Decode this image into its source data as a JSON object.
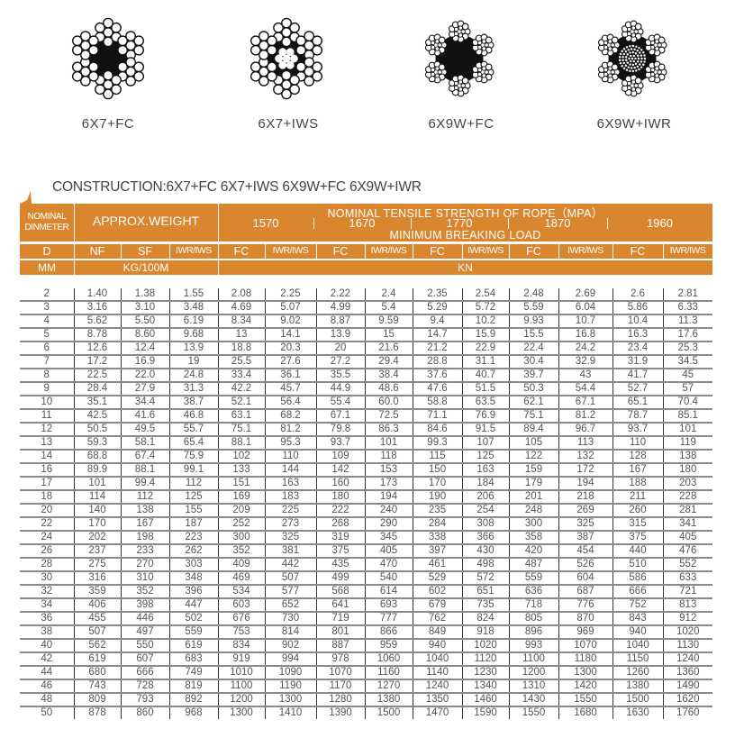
{
  "ropes": [
    {
      "label": "6X7+FC",
      "type": "7fc"
    },
    {
      "label": "6X7+IWS",
      "type": "7iws"
    },
    {
      "label": "6X9W+FC",
      "type": "9fc"
    },
    {
      "label": "6X9W+IWR",
      "type": "9iwr"
    }
  ],
  "construction": "CONSTRUCTION:6X7+FC 6X7+IWS 6X9W+FC 6X9W+IWR",
  "header": {
    "nominal_diameter": [
      "NOMINAL",
      "DINMETER"
    ],
    "approx_weight": "APPROX.WEIGHT",
    "tensile_title": "NOMINAL TENSILE STRENGTH OF ROPE（MPA）",
    "grades": [
      "1570",
      "1670",
      "1770",
      "1870",
      "1960"
    ],
    "min_breaking_load": "MINIMUM BREAKING LOAD",
    "sub_columns": [
      "D",
      "NF",
      "SF",
      "IWR/IWS",
      "FC",
      "IWR/IWS",
      "FC",
      "IWR/IWS",
      "FC",
      "IWR/IWS",
      "FC",
      "IWR/IWS",
      "FC",
      "IWR/IWS"
    ],
    "unit_mm": "MM",
    "unit_weight": "KG/100M",
    "unit_load": "KN"
  },
  "colors": {
    "header_bg": "#d9862f",
    "header_text": "#ffffff"
  },
  "rows": [
    [
      "2",
      "1.40",
      "1.38",
      "1.55",
      "2.08",
      "2.25",
      "2.22",
      "2.4",
      "2.35",
      "2.54",
      "2.48",
      "2.69",
      "2.6",
      "2.81"
    ],
    [
      "3",
      "3.16",
      "3.10",
      "3.48",
      "4.69",
      "5.07",
      "4.99",
      "5.4",
      "5.29",
      "5.72",
      "5.59",
      "6.04",
      "5.86",
      "6.33"
    ],
    [
      "4",
      "5.62",
      "5.50",
      "6.19",
      "8.34",
      "9.02",
      "8.87",
      "9.59",
      "9.4",
      "10.2",
      "9.93",
      "10.7",
      "10.4",
      "11.3"
    ],
    [
      "5",
      "8.78",
      "8.60",
      "9.68",
      "13",
      "14.1",
      "13.9",
      "15",
      "14.7",
      "15.9",
      "15.5",
      "16.8",
      "16.3",
      "17.6"
    ],
    [
      "6",
      "12.6",
      "12.4",
      "13.9",
      "18.8",
      "20.3",
      "20",
      "21.6",
      "21.2",
      "22.9",
      "22.4",
      "24.2",
      "23.4",
      "25.3"
    ],
    [
      "7",
      "17.2",
      "16.9",
      "19",
      "25.5",
      "27.6",
      "27.2",
      "29.4",
      "28.8",
      "31.1",
      "30.4",
      "32.9",
      "31.9",
      "34.5"
    ],
    [
      "8",
      "22.5",
      "22.0",
      "24.8",
      "33.4",
      "36.1",
      "35.5",
      "38.4",
      "37.6",
      "40.7",
      "39.7",
      "43",
      "41.7",
      "45"
    ],
    [
      "9",
      "28.4",
      "27.9",
      "31.3",
      "42.2",
      "45.7",
      "44.9",
      "48.6",
      "47.6",
      "51.5",
      "50.3",
      "54.4",
      "52.7",
      "57"
    ],
    [
      "10",
      "35.1",
      "34.4",
      "38.7",
      "52.1",
      "56.4",
      "55.4",
      "60.0",
      "58.8",
      "63.5",
      "62.1",
      "67.1",
      "65.1",
      "70.4"
    ],
    [
      "11",
      "42.5",
      "41.6",
      "46.8",
      "63.1",
      "68.2",
      "67.1",
      "72.5",
      "71.1",
      "76.9",
      "75.1",
      "81.2",
      "78.7",
      "85.1"
    ],
    [
      "12",
      "50.5",
      "49.5",
      "55.7",
      "75.1",
      "81.2",
      "79.8",
      "86.3",
      "84.6",
      "91.5",
      "89.4",
      "96.7",
      "93.7",
      "101"
    ],
    [
      "13",
      "59.3",
      "58.1",
      "65.4",
      "88.1",
      "95.3",
      "93.7",
      "101",
      "99.3",
      "107",
      "105",
      "113",
      "110",
      "119"
    ],
    [
      "14",
      "68.8",
      "67.4",
      "75.9",
      "102",
      "110",
      "109",
      "118",
      "115",
      "125",
      "122",
      "132",
      "128",
      "138"
    ],
    [
      "16",
      "89.9",
      "88.1",
      "99.1",
      "133",
      "144",
      "142",
      "153",
      "150",
      "163",
      "159",
      "172",
      "167",
      "180"
    ],
    [
      "17",
      "101",
      "99.4",
      "112",
      "151",
      "163",
      "160",
      "173",
      "170",
      "184",
      "179",
      "194",
      "188",
      "203"
    ],
    [
      "18",
      "114",
      "112",
      "125",
      "169",
      "183",
      "180",
      "194",
      "190",
      "206",
      "201",
      "218",
      "211",
      "228"
    ],
    [
      "20",
      "140",
      "138",
      "155",
      "209",
      "225",
      "222",
      "240",
      "235",
      "254",
      "248",
      "269",
      "260",
      "281"
    ],
    [
      "22",
      "170",
      "167",
      "187",
      "252",
      "273",
      "268",
      "290",
      "284",
      "308",
      "300",
      "325",
      "315",
      "341"
    ],
    [
      "24",
      "202",
      "198",
      "223",
      "300",
      "325",
      "319",
      "345",
      "338",
      "366",
      "358",
      "387",
      "375",
      "405"
    ],
    [
      "26",
      "237",
      "233",
      "262",
      "352",
      "381",
      "375",
      "405",
      "397",
      "430",
      "420",
      "454",
      "440",
      "476"
    ],
    [
      "28",
      "275",
      "270",
      "303",
      "409",
      "442",
      "435",
      "470",
      "461",
      "498",
      "487",
      "526",
      "510",
      "552"
    ],
    [
      "30",
      "316",
      "310",
      "348",
      "469",
      "507",
      "499",
      "540",
      "529",
      "572",
      "559",
      "604",
      "586",
      "633"
    ],
    [
      "32",
      "359",
      "352",
      "396",
      "534",
      "577",
      "568",
      "614",
      "602",
      "651",
      "636",
      "687",
      "666",
      "721"
    ],
    [
      "34",
      "406",
      "398",
      "447",
      "603",
      "652",
      "641",
      "693",
      "679",
      "735",
      "718",
      "776",
      "752",
      "813"
    ],
    [
      "36",
      "455",
      "446",
      "502",
      "676",
      "730",
      "719",
      "777",
      "762",
      "824",
      "805",
      "870",
      "843",
      "912"
    ],
    [
      "38",
      "507",
      "497",
      "559",
      "753",
      "814",
      "801",
      "866",
      "849",
      "918",
      "896",
      "969",
      "940",
      "1020"
    ],
    [
      "40",
      "562",
      "550",
      "619",
      "834",
      "902",
      "887",
      "959",
      "940",
      "1020",
      "993",
      "1070",
      "1040",
      "1130"
    ],
    [
      "42",
      "619",
      "607",
      "683",
      "919",
      "994",
      "978",
      "1060",
      "1040",
      "1120",
      "1100",
      "1180",
      "1150",
      "1240"
    ],
    [
      "44",
      "680",
      "666",
      "749",
      "1010",
      "1090",
      "1070",
      "1160",
      "1140",
      "1230",
      "1200",
      "1300",
      "1260",
      "1360"
    ],
    [
      "46",
      "743",
      "728",
      "819",
      "1100",
      "1190",
      "1170",
      "1270",
      "1240",
      "1340",
      "1310",
      "1420",
      "1380",
      "1490"
    ],
    [
      "48",
      "809",
      "793",
      "892",
      "1200",
      "1300",
      "1280",
      "1380",
      "1350",
      "1460",
      "1430",
      "1550",
      "1500",
      "1620"
    ],
    [
      "50",
      "878",
      "860",
      "968",
      "1300",
      "1410",
      "1390",
      "1500",
      "1470",
      "1590",
      "1550",
      "1680",
      "1630",
      "1760"
    ]
  ]
}
